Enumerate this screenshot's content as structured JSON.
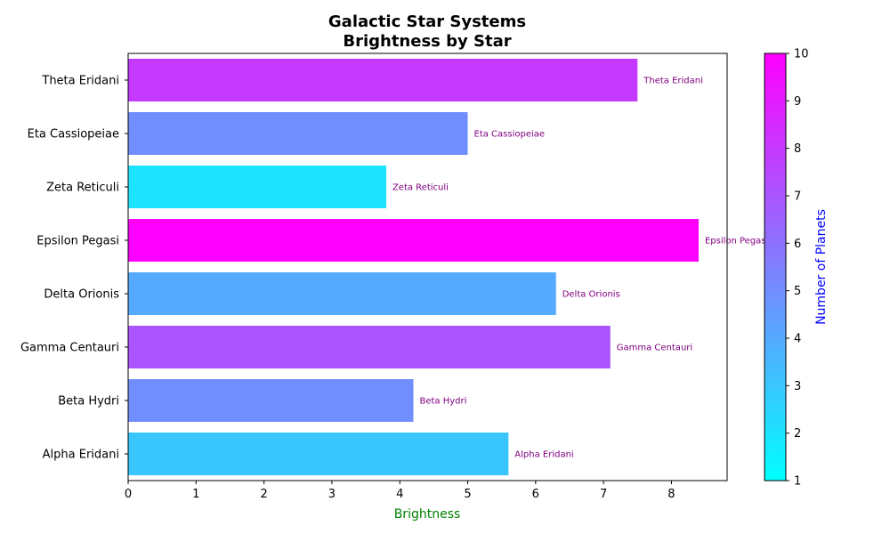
{
  "chart_data": {
    "type": "bar",
    "orientation": "horizontal",
    "title_lines": [
      "Galactic Star Systems",
      "Brightness by Star"
    ],
    "xlabel": "Brightness",
    "xlabel_color": "#008000",
    "xlim": [
      0,
      8.82
    ],
    "xticks": [
      0,
      1,
      2,
      3,
      4,
      5,
      6,
      7,
      8
    ],
    "categories": [
      "Alpha Eridani",
      "Beta Hydri",
      "Gamma Centauri",
      "Delta Orionis",
      "Epsilon Pegasi",
      "Zeta Reticuli",
      "Eta Cassiopeiae",
      "Theta Eridani"
    ],
    "values": [
      5.6,
      4.2,
      7.1,
      6.3,
      8.4,
      3.8,
      5.0,
      7.5
    ],
    "planets": [
      3,
      5,
      7,
      4,
      10,
      2,
      5,
      8
    ],
    "bar_label_color": "#800080",
    "grid": false,
    "legend": "none",
    "colorbar": {
      "label": "Number of Planets",
      "label_color": "#0000ff",
      "range": [
        1,
        10
      ],
      "ticks": [
        1,
        2,
        3,
        4,
        5,
        6,
        7,
        8,
        9,
        10
      ],
      "color_low": "#00ffff",
      "color_high": "#ff00ff"
    }
  }
}
